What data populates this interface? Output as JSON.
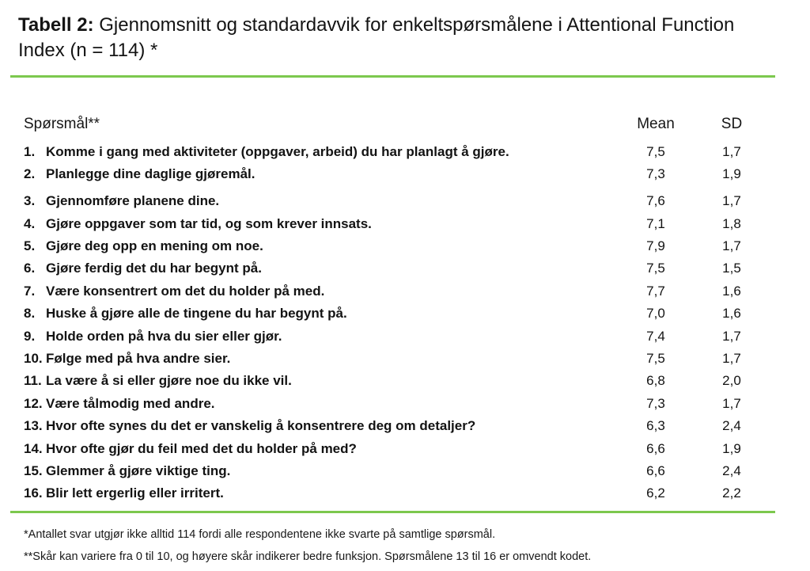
{
  "title": {
    "prefix": "Tabell 2:",
    "rest": " Gjennomsnitt og standardavvik for enkeltspørsmålene i Attentional Function Index (n = 114) *"
  },
  "table": {
    "headers": {
      "question": "Spørsmål**",
      "mean": "Mean",
      "sd": "SD"
    },
    "rows": [
      {
        "num": "1.",
        "question": "Komme i gang med aktiviteter (oppgaver, arbeid) du har planlagt å gjøre.",
        "mean": "7,5",
        "sd": "1,7"
      },
      {
        "num": "2.",
        "question": "Planlegge dine daglige gjøremål.",
        "mean": "7,3",
        "sd": "1,9"
      },
      {
        "num": "3.",
        "question": "Gjennomføre planene dine.",
        "mean": "7,6",
        "sd": "1,7"
      },
      {
        "num": "4.",
        "question": "Gjøre oppgaver som tar tid, og som krever innsats.",
        "mean": "7,1",
        "sd": "1,8"
      },
      {
        "num": "5.",
        "question": "Gjøre deg opp en mening om noe.",
        "mean": "7,9",
        "sd": "1,7"
      },
      {
        "num": "6.",
        "question": "Gjøre ferdig det du har begynt på.",
        "mean": "7,5",
        "sd": "1,5"
      },
      {
        "num": "7.",
        "question": "Være konsentrert om det du holder på med.",
        "mean": "7,7",
        "sd": "1,6"
      },
      {
        "num": "8.",
        "question": "Huske å gjøre alle de tingene du har begynt på.",
        "mean": "7,0",
        "sd": "1,6"
      },
      {
        "num": "9.",
        "question": "Holde orden på hva du sier eller gjør.",
        "mean": "7,4",
        "sd": "1,7"
      },
      {
        "num": "10.",
        "question": "Følge med på hva andre sier.",
        "mean": "7,5",
        "sd": "1,7"
      },
      {
        "num": "11.",
        "question": "La være å si eller gjøre noe du ikke vil.",
        "mean": "6,8",
        "sd": "2,0"
      },
      {
        "num": "12.",
        "question": "Være tålmodig med andre.",
        "mean": "7,3",
        "sd": "1,7"
      },
      {
        "num": "13.",
        "question": "Hvor ofte synes du det er vanskelig å konsentrere deg om detaljer?",
        "mean": "6,3",
        "sd": "2,4"
      },
      {
        "num": "14.",
        "question": "Hvor ofte gjør du feil med det du holder på med?",
        "mean": "6,6",
        "sd": "1,9"
      },
      {
        "num": "15.",
        "question": "Glemmer å gjøre viktige ting.",
        "mean": "6,6",
        "sd": "2,4"
      },
      {
        "num": "16.",
        "question": "Blir lett ergerlig eller irritert.",
        "mean": "6,2",
        "sd": "2,2"
      }
    ]
  },
  "footnotes": [
    "*Antallet svar utgjør ikke alltid 114 fordi alle respondentene ikke svarte på samtlige spørsmål.",
    "**Skår kan variere fra 0 til 10, og høyere skår indikerer bedre funksjon. Spørsmålene 13 til 16 er omvendt kodet."
  ],
  "colors": {
    "rule_green": "#7cc84e",
    "text": "#111111"
  }
}
